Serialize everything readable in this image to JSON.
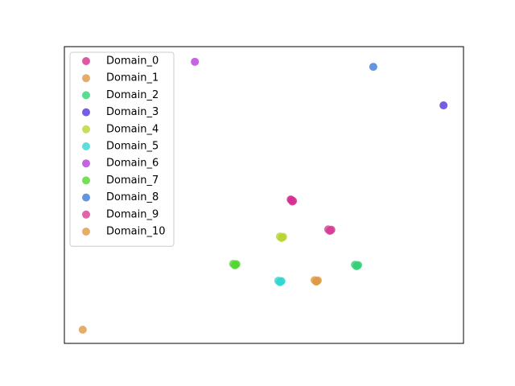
{
  "chart_data": {
    "type": "scatter",
    "xlim": [
      0,
      1
    ],
    "ylim": [
      0,
      1
    ],
    "legend": "upper left",
    "series": [
      {
        "name": "Domain_0",
        "color": "#d6308f",
        "x": [
          0.567,
          0.573,
          0.571,
          0.569
        ],
        "y": [
          0.485,
          0.48,
          0.478,
          0.483
        ]
      },
      {
        "name": "Domain_1",
        "color": "#dd9a44",
        "x": [
          0.046
        ],
        "y": [
          0.046
        ]
      },
      {
        "name": "Domain_2",
        "color": "#33d177",
        "x": [
          0.728,
          0.734,
          0.732,
          0.736
        ],
        "y": [
          0.265,
          0.262,
          0.26,
          0.264
        ]
      },
      {
        "name": "Domain_3",
        "color": "#5533dd",
        "x": [
          0.95
        ],
        "y": [
          0.802
        ]
      },
      {
        "name": "Domain_4",
        "color": "#b8d633",
        "x": [
          0.54,
          0.546,
          0.544,
          0.548
        ],
        "y": [
          0.36,
          0.357,
          0.355,
          0.359
        ]
      },
      {
        "name": "Domain_5",
        "color": "#33d6d0",
        "x": [
          0.536,
          0.542,
          0.54,
          0.544
        ],
        "y": [
          0.211,
          0.208,
          0.206,
          0.21
        ]
      },
      {
        "name": "Domain_6",
        "color": "#b43fd9",
        "x": [
          0.327
        ],
        "y": [
          0.949
        ]
      },
      {
        "name": "Domain_7",
        "color": "#55d633",
        "x": [
          0.423,
          0.429,
          0.427,
          0.431
        ],
        "y": [
          0.268,
          0.265,
          0.263,
          0.267
        ]
      },
      {
        "name": "Domain_8",
        "color": "#3d7bd9",
        "x": [
          0.774
        ],
        "y": [
          0.932
        ]
      },
      {
        "name": "Domain_9",
        "color": "#d63f95",
        "x": [
          0.661,
          0.667,
          0.665,
          0.669
        ],
        "y": [
          0.384,
          0.381,
          0.379,
          0.383
        ]
      },
      {
        "name": "Domain_10",
        "color": "#dd9a44",
        "x": [
          0.627,
          0.633,
          0.631,
          0.635
        ],
        "y": [
          0.213,
          0.21,
          0.208,
          0.212
        ]
      }
    ]
  }
}
